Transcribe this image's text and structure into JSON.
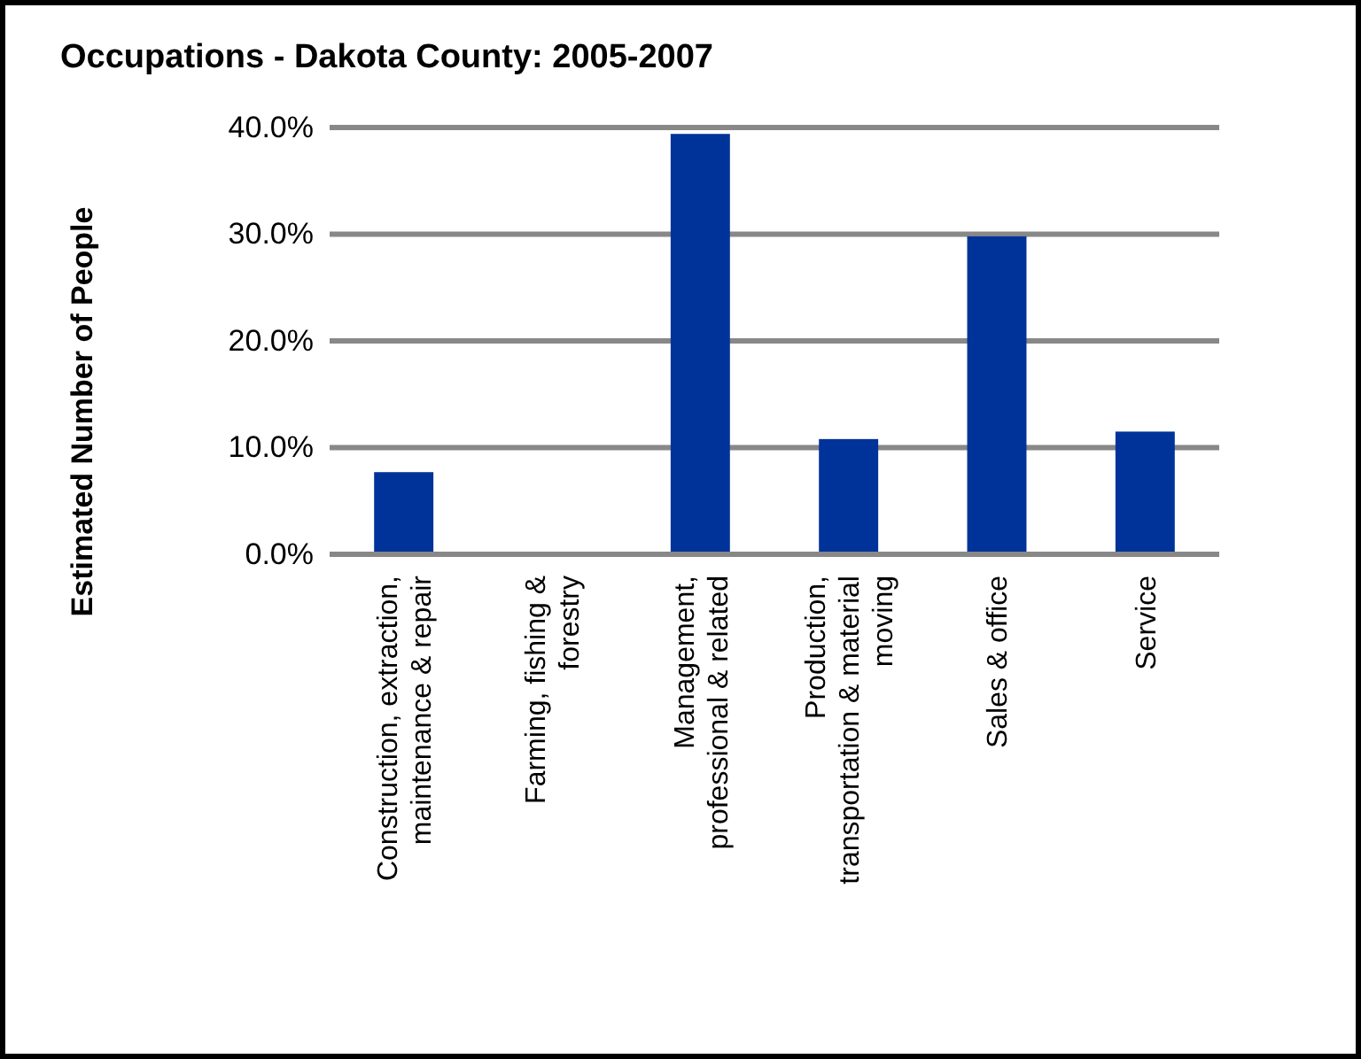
{
  "chart_data": {
    "type": "bar",
    "title": "Occupations - Dakota County: 2005-2007",
    "ylabel": "Estimated Number of People",
    "categories": [
      "Construction, extraction, maintenance & repair",
      "Farming, fishing & forestry",
      "Management, professional & related",
      "Production, transportation & material moving",
      "Sales & office",
      "Service"
    ],
    "values": [
      7.7,
      0,
      39.4,
      10.8,
      29.8,
      11.5
    ],
    "color": "#003399",
    "ylim": [
      0,
      40
    ],
    "yticks": [
      {
        "value": 0,
        "label": "0.0%"
      },
      {
        "value": 10,
        "label": "10.0%"
      },
      {
        "value": 20,
        "label": "20.0%"
      },
      {
        "value": 30,
        "label": "30.0%"
      },
      {
        "value": 40,
        "label": "40.0%"
      }
    ],
    "grid": "y"
  }
}
